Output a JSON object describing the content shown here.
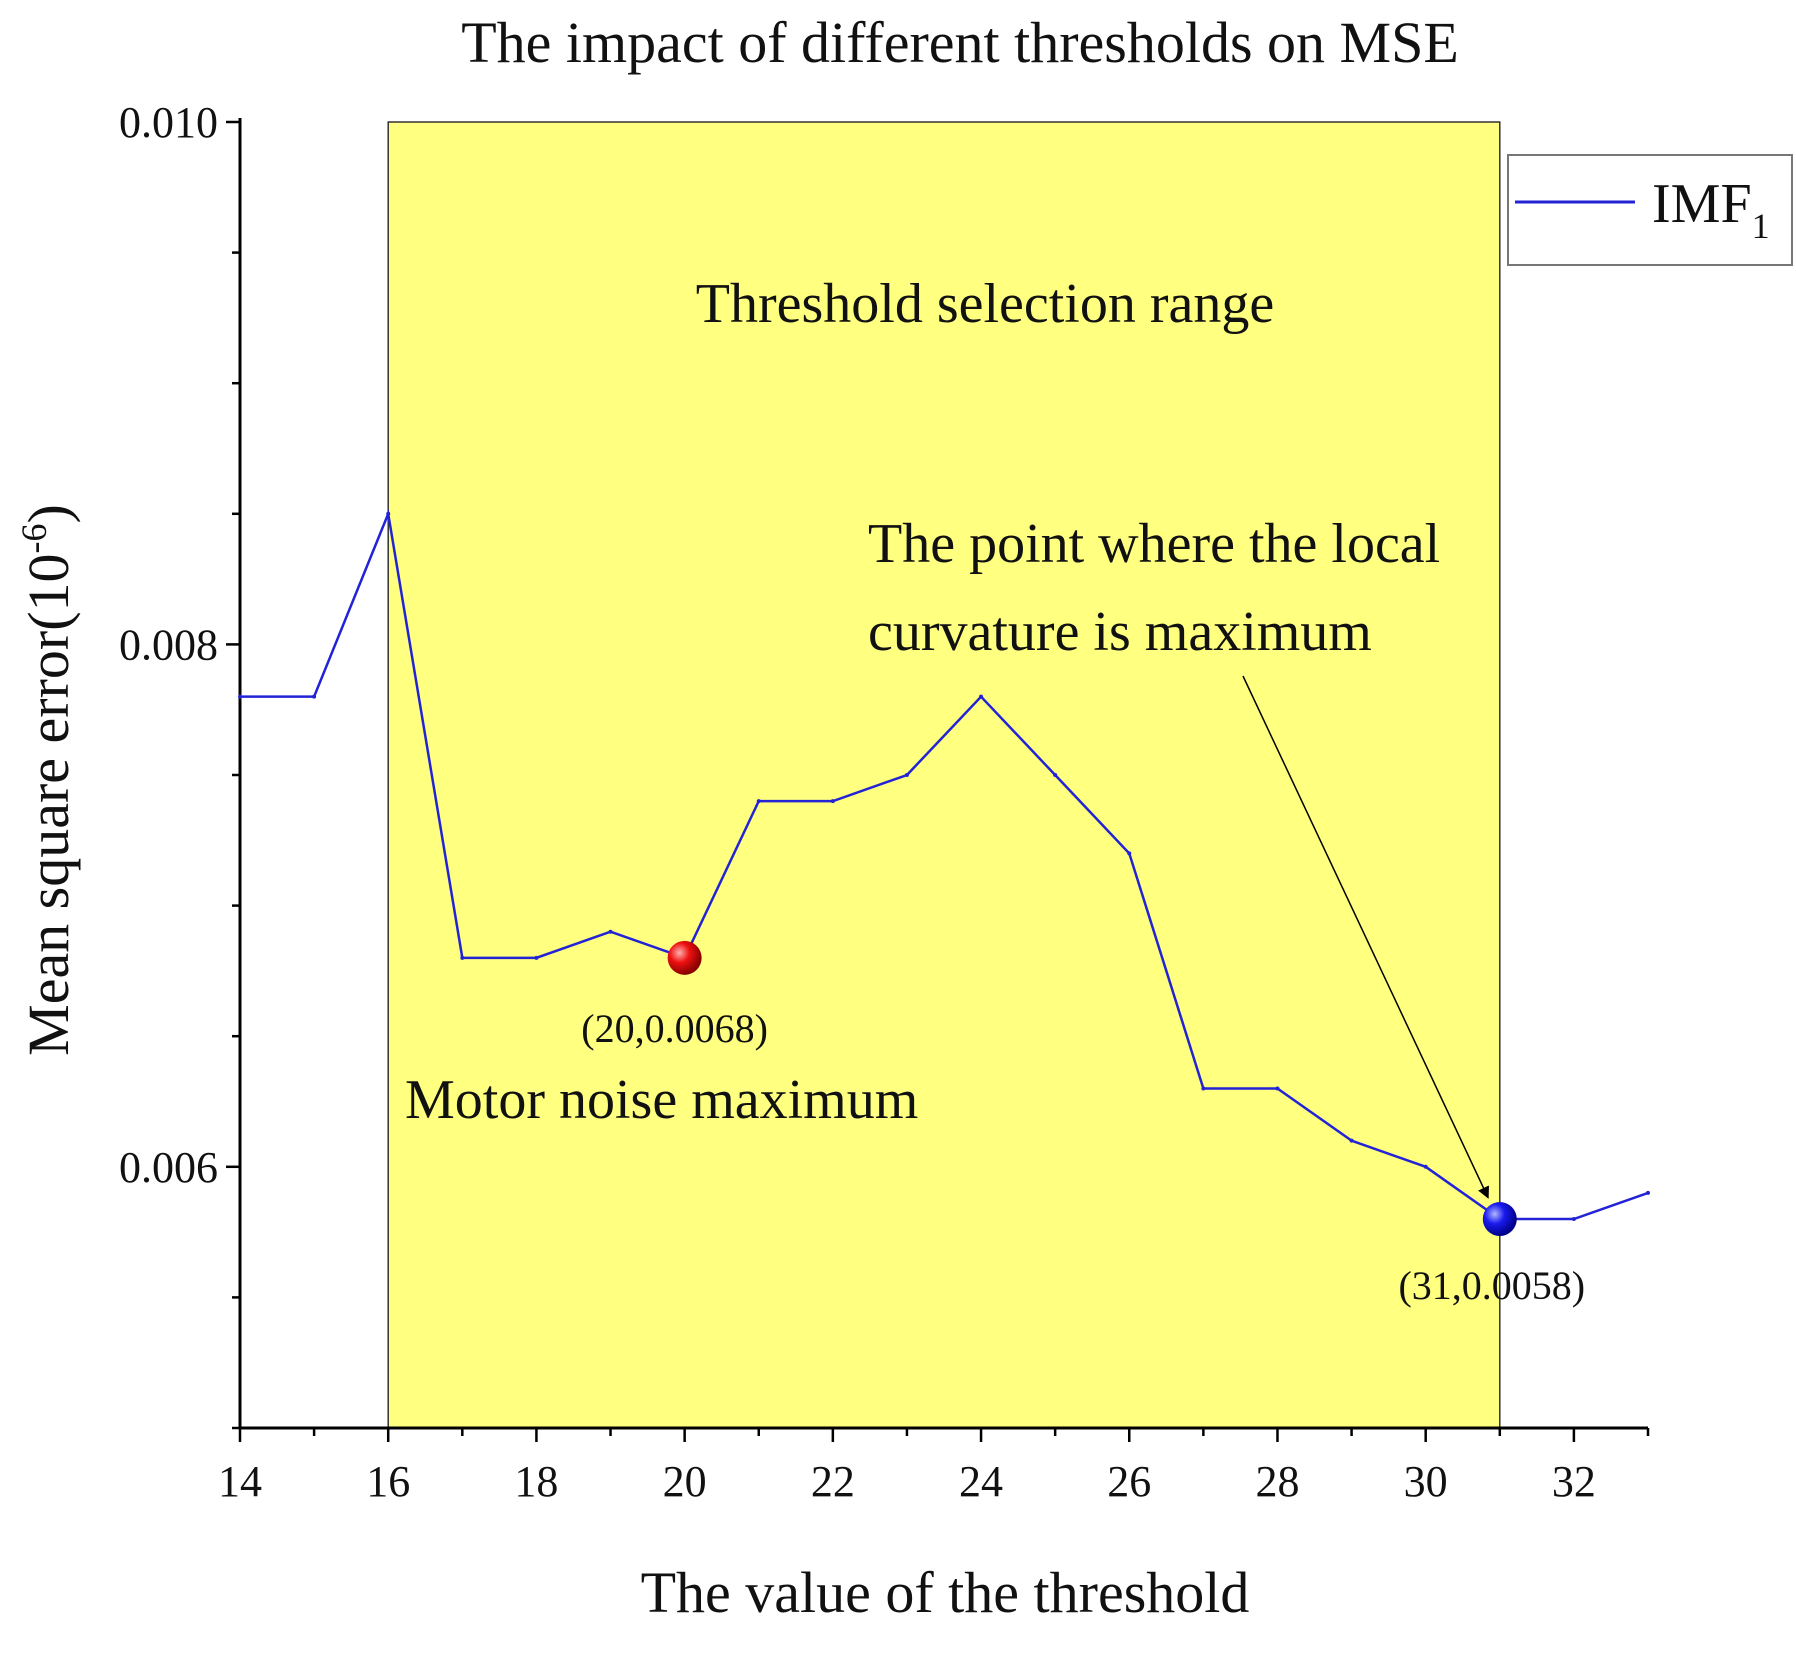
{
  "chart_data": {
    "type": "line",
    "title": "The impact of different thresholds on MSE",
    "xlabel": "The value of the threshold",
    "ylabel": "Mean square error(10",
    "ylabel_exponent": "-6",
    "ylabel_suffix": ")",
    "xlim": [
      14,
      33
    ],
    "ylim": [
      0.005,
      0.01
    ],
    "x_ticks": [
      14,
      16,
      18,
      20,
      22,
      24,
      26,
      28,
      30,
      32
    ],
    "x_tick_labels": [
      "14",
      "16",
      "18",
      "20",
      "22",
      "24",
      "26",
      "28",
      "30",
      "32"
    ],
    "y_ticks": [
      0.006,
      0.008,
      0.01
    ],
    "y_tick_labels": [
      "0.006",
      "0.008",
      "0.010"
    ],
    "series": [
      {
        "name": "IMF",
        "name_subscript": "1",
        "color": "#2323d6",
        "x": [
          14,
          15,
          16,
          17,
          18,
          19,
          20,
          21,
          22,
          23,
          24,
          25,
          26,
          27,
          28,
          29,
          30,
          31,
          32,
          33
        ],
        "y": [
          0.0078,
          0.0078,
          0.0085,
          0.0068,
          0.0068,
          0.0069,
          0.0068,
          0.0074,
          0.0074,
          0.0075,
          0.0078,
          0.0075,
          0.0072,
          0.0063,
          0.0063,
          0.0061,
          0.006,
          0.0058,
          0.0058,
          0.0059
        ]
      }
    ],
    "shaded_region": {
      "x_range": [
        16,
        31
      ],
      "label": "Threshold selection range",
      "color": "#ffff80"
    },
    "highlight_points": [
      {
        "x": 20,
        "y": 0.0068,
        "label": "(20,0.0068)",
        "color": "#e01010",
        "note": "Motor noise maximum"
      },
      {
        "x": 31,
        "y": 0.0058,
        "label": "(31,0.0058)",
        "color": "#1818e0"
      }
    ],
    "annotations": {
      "curvature_line1": "The point where the local",
      "curvature_line2": "curvature is maximum"
    },
    "legend_position": "top-right"
  }
}
